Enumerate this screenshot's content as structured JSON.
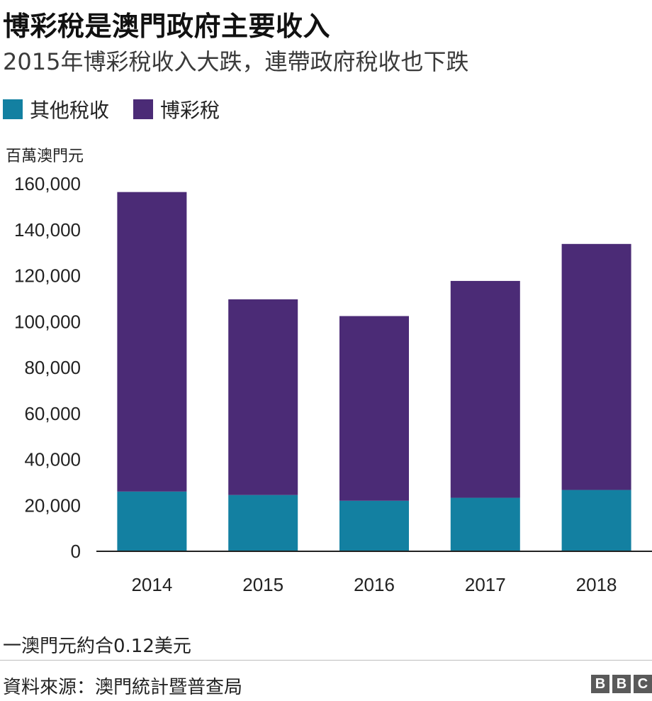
{
  "header": {
    "title": "博彩稅是澳門政府主要收入",
    "subtitle": "2015年博彩稅收入大跌，連帶政府稅收也下跌"
  },
  "legend": [
    {
      "label": "其他稅收",
      "color": "#1380a1"
    },
    {
      "label": "博彩稅",
      "color": "#4b2b76"
    }
  ],
  "chart_data": {
    "type": "bar",
    "stacked": true,
    "unit_label": "百萬澳門元",
    "categories": [
      "2014",
      "2015",
      "2016",
      "2017",
      "2018"
    ],
    "series": [
      {
        "name": "其他稅收",
        "color": "#1380a1",
        "values": [
          26000,
          24500,
          22000,
          23300,
          26700
        ]
      },
      {
        "name": "博彩稅",
        "color": "#4b2b76",
        "values": [
          130400,
          85200,
          80400,
          94400,
          107100
        ]
      }
    ],
    "ylim": [
      0,
      160000
    ],
    "yticks": [
      0,
      20000,
      40000,
      60000,
      80000,
      100000,
      120000,
      140000,
      160000
    ],
    "ytick_labels": [
      "0",
      "20,000",
      "40,000",
      "60,000",
      "80,000",
      "100,000",
      "120,000",
      "140,000",
      "160,000"
    ],
    "grid": false,
    "legend_position": "top-left"
  },
  "footer": {
    "note": "一澳門元約合0.12美元",
    "source": "資料來源：澳門統計暨普查局",
    "logo": [
      "B",
      "B",
      "C"
    ]
  }
}
